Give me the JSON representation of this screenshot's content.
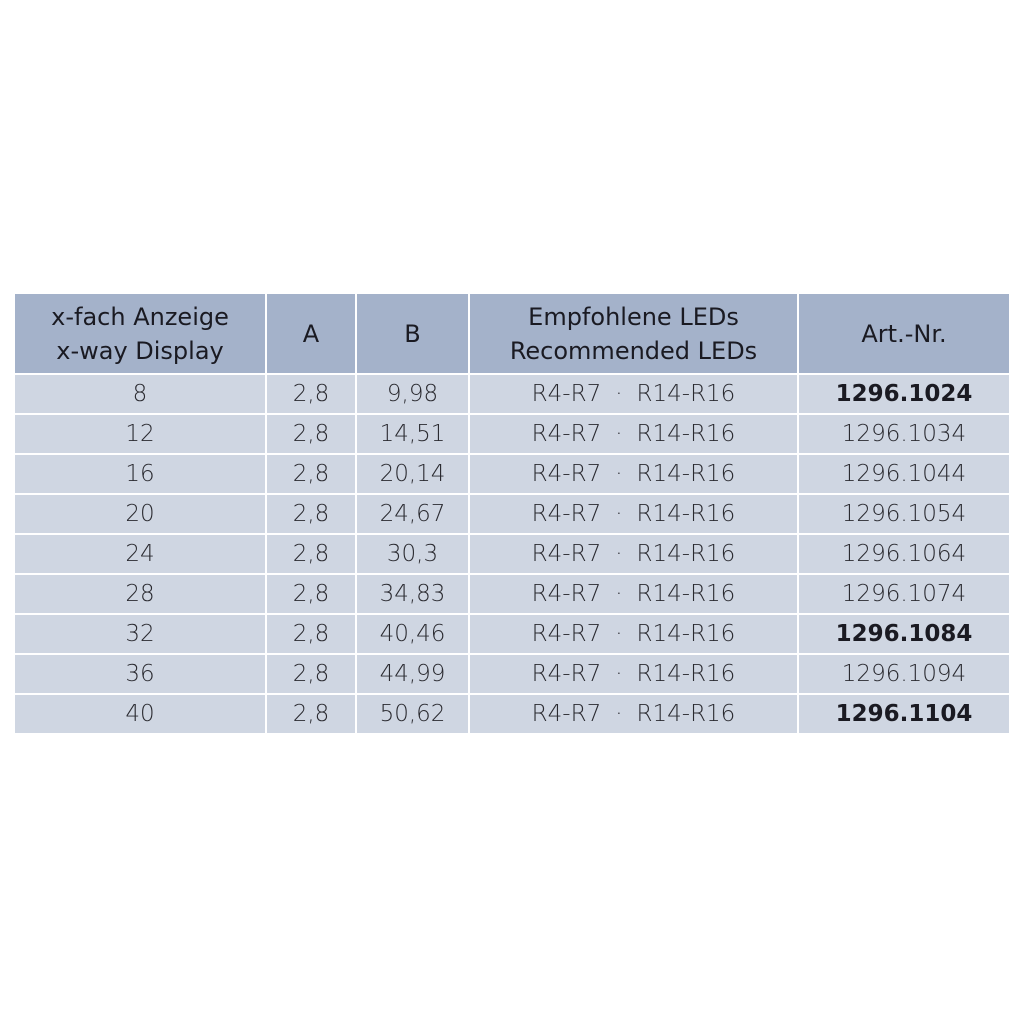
{
  "table": {
    "headers": [
      {
        "line1": "x-fach Anzeige",
        "line2": "x-way Display"
      },
      {
        "line1": "A"
      },
      {
        "line1": "B"
      },
      {
        "line1": "Empfohlene LEDs",
        "line2": "Recommended LEDs"
      },
      {
        "line1": "Art.-Nr."
      }
    ],
    "rows": [
      {
        "x": "8",
        "a": "2,8",
        "b": "9,98",
        "led1": "R4-R7",
        "sep": "·",
        "led2": "R14-R16",
        "art": "1296.1024",
        "bold": true
      },
      {
        "x": "12",
        "a": "2,8",
        "b": "14,51",
        "led1": "R4-R7",
        "sep": "·",
        "led2": "R14-R16",
        "art": "1296.1034",
        "bold": false
      },
      {
        "x": "16",
        "a": "2,8",
        "b": "20,14",
        "led1": "R4-R7",
        "sep": "·",
        "led2": "R14-R16",
        "art": "1296.1044",
        "bold": false
      },
      {
        "x": "20",
        "a": "2,8",
        "b": "24,67",
        "led1": "R4-R7",
        "sep": "·",
        "led2": "R14-R16",
        "art": "1296.1054",
        "bold": false
      },
      {
        "x": "24",
        "a": "2,8",
        "b": "30,3",
        "led1": "R4-R7",
        "sep": "·",
        "led2": "R14-R16",
        "art": "1296.1064",
        "bold": false
      },
      {
        "x": "28",
        "a": "2,8",
        "b": "34,83",
        "led1": "R4-R7",
        "sep": "·",
        "led2": "R14-R16",
        "art": "1296.1074",
        "bold": false
      },
      {
        "x": "32",
        "a": "2,8",
        "b": "40,46",
        "led1": "R4-R7",
        "sep": "·",
        "led2": "R14-R16",
        "art": "1296.1084",
        "bold": true
      },
      {
        "x": "36",
        "a": "2,8",
        "b": "44,99",
        "led1": "R4-R7",
        "sep": "·",
        "led2": "R14-R16",
        "art": "1296.1094",
        "bold": false
      },
      {
        "x": "40",
        "a": "2,8",
        "b": "50,62",
        "led1": "R4-R7",
        "sep": "·",
        "led2": "R14-R16",
        "art": "1296.1104",
        "bold": true
      }
    ]
  },
  "colors": {
    "header": "#a4b2ca",
    "row": "#cfd6e2"
  }
}
